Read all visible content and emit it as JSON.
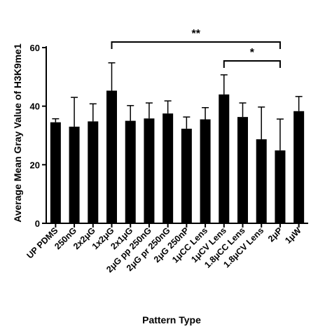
{
  "chart_data": {
    "type": "bar",
    "title": "",
    "xlabel": "Pattern Type",
    "ylabel": "Average Mean Gray  Value of H3K9me1",
    "ylim": [
      0,
      60
    ],
    "yticks": [
      0,
      20,
      40,
      60
    ],
    "grid": false,
    "categories": [
      "UP PDMS",
      "250nG",
      "2x2μG",
      "1x2μG",
      "2x1μG",
      "2μG pp 250nG",
      "2μG pr 250nG",
      "2μG 250nP",
      "1μCC Lens",
      "1μCV Lens",
      "1.8μCC Lens",
      "1.8μCV Lens",
      "2μP",
      "1μW"
    ],
    "values": [
      34.5,
      33,
      34.8,
      45.3,
      35,
      35.8,
      37.5,
      32.3,
      35.5,
      44,
      36.3,
      28.7,
      24.9,
      38.3
    ],
    "error": [
      1.2,
      10,
      6,
      9.5,
      5.2,
      5.3,
      4.3,
      4,
      4,
      6.7,
      4.8,
      11,
      10.7,
      5
    ],
    "bar_color": "#000000",
    "significance": [
      {
        "from": "1x2μG",
        "to": "2μP",
        "label": "**"
      },
      {
        "from": "1μCV Lens",
        "to": "2μP",
        "label": "*"
      }
    ]
  }
}
